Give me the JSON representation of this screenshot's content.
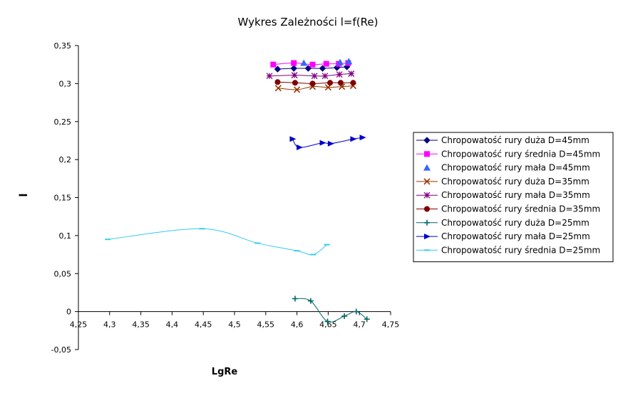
{
  "chart_data": {
    "type": "line",
    "title": "Wykres Zależności l=f(Re)",
    "xlabel": "LgRe",
    "ylabel": "l",
    "xlim": [
      4.25,
      4.75
    ],
    "ylim": [
      -0.05,
      0.35
    ],
    "x_ticks": [
      "4,25",
      "4,3",
      "4,35",
      "4,4",
      "4,45",
      "4,5",
      "4,55",
      "4,6",
      "4,65",
      "4,7",
      "4,75"
    ],
    "y_ticks": [
      "-0,05",
      "0",
      "0,05",
      "0,1",
      "0,15",
      "0,2",
      "0,25",
      "0,3",
      "0,35"
    ],
    "grid": false,
    "legend_position": "right",
    "series": [
      {
        "name": "Chropowatość rury duża D=45mm",
        "color": "#000080",
        "marker": "diamond",
        "line": true,
        "x": [
          4.569,
          4.595,
          4.618,
          4.641,
          4.664,
          4.68
        ],
        "y": [
          0.319,
          0.32,
          0.32,
          0.32,
          0.321,
          0.322
        ]
      },
      {
        "name": "Chropowatość rury średnia D=45mm",
        "color": "#FF00FF",
        "marker": "square",
        "line": true,
        "x": [
          4.562,
          4.595,
          4.625,
          4.647,
          4.667,
          4.682
        ],
        "y": [
          0.325,
          0.327,
          0.325,
          0.326,
          0.326,
          0.327
        ]
      },
      {
        "name": "Chropowatość rury mała D=45mm",
        "color": "#3366FF",
        "marker": "triangle",
        "line": false,
        "x": [
          4.611,
          4.669,
          4.683
        ],
        "y": [
          0.327,
          0.328,
          0.329
        ]
      },
      {
        "name": "Chropowatość rury duża D=35mm",
        "color": "#993300",
        "marker": "x",
        "line": true,
        "x": [
          4.57,
          4.6,
          4.625,
          4.65,
          4.672,
          4.69
        ],
        "y": [
          0.294,
          0.292,
          0.296,
          0.295,
          0.296,
          0.297
        ]
      },
      {
        "name": "Chropowatość rury mała D=35mm",
        "color": "#800080",
        "marker": "star",
        "line": true,
        "x": [
          4.556,
          4.596,
          4.628,
          4.645,
          4.668,
          4.687
        ],
        "y": [
          0.31,
          0.311,
          0.31,
          0.31,
          0.312,
          0.313
        ]
      },
      {
        "name": "Chropowatość rury średnia D=35mm",
        "color": "#800000",
        "marker": "circle",
        "line": true,
        "x": [
          4.569,
          4.597,
          4.625,
          4.653,
          4.67,
          4.69
        ],
        "y": [
          0.302,
          0.301,
          0.3,
          0.301,
          0.301,
          0.301
        ]
      },
      {
        "name": "Chropowatość rury duża D=25mm",
        "color": "#006666",
        "marker": "plus",
        "line": true,
        "x": [
          4.597,
          4.622,
          4.649,
          4.676,
          4.695,
          4.712
        ],
        "y": [
          0.017,
          0.014,
          -0.013,
          -0.006,
          0.0,
          -0.01
        ]
      },
      {
        "name": "Chropowatość rury mała D=25mm",
        "color": "#0000CC",
        "marker": "triangle-right",
        "line": true,
        "x": [
          4.593,
          4.604,
          4.641,
          4.654,
          4.69,
          4.705
        ],
        "y": [
          0.227,
          0.216,
          0.222,
          0.221,
          0.227,
          0.229
        ]
      },
      {
        "name": "Chropowatość rury średnia D=25mm",
        "color": "#33CCEE",
        "marker": "dash",
        "line": true,
        "x": [
          4.297,
          4.448,
          4.537,
          4.6,
          4.626,
          4.648
        ],
        "y": [
          0.095,
          0.109,
          0.09,
          0.08,
          0.075,
          0.088
        ]
      }
    ]
  }
}
